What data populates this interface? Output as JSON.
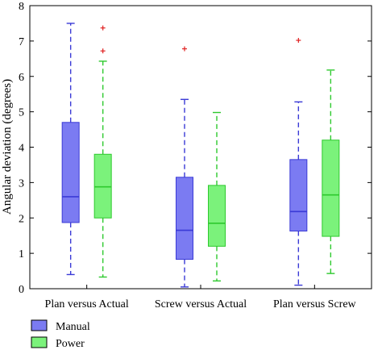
{
  "chart_data": {
    "type": "box",
    "ylabel": "Angular deviation (degrees)",
    "ylim": [
      0,
      8
    ],
    "yticks": [
      0,
      1,
      2,
      3,
      4,
      5,
      6,
      7,
      8
    ],
    "categories": [
      "Plan versus Actual",
      "Screw versus Actual",
      "Plan versus Screw"
    ],
    "legend_position": "bottom-left",
    "series": [
      {
        "name": "Manual",
        "color": "#7b7bf2",
        "line_color": "#3a3ad6",
        "boxes": [
          {
            "whisker_low": 0.4,
            "q1": 1.87,
            "median": 2.6,
            "q3": 4.7,
            "whisker_high": 7.5,
            "outliers": []
          },
          {
            "whisker_low": 0.05,
            "q1": 0.83,
            "median": 1.65,
            "q3": 3.15,
            "whisker_high": 5.35,
            "outliers": [
              6.78
            ]
          },
          {
            "whisker_low": 0.1,
            "q1": 1.63,
            "median": 2.18,
            "q3": 3.65,
            "whisker_high": 5.28,
            "outliers": [
              7.02
            ]
          }
        ]
      },
      {
        "name": "Power",
        "color": "#7bf27b",
        "line_color": "#2ec92e",
        "boxes": [
          {
            "whisker_low": 0.33,
            "q1": 2.0,
            "median": 2.88,
            "q3": 3.8,
            "whisker_high": 6.43,
            "outliers": [
              6.72,
              7.37
            ]
          },
          {
            "whisker_low": 0.22,
            "q1": 1.2,
            "median": 1.85,
            "q3": 2.92,
            "whisker_high": 4.98,
            "outliers": []
          },
          {
            "whisker_low": 0.43,
            "q1": 1.48,
            "median": 2.65,
            "q3": 4.2,
            "whisker_high": 6.18,
            "outliers": []
          }
        ]
      }
    ],
    "outlier_color": "#e02020"
  }
}
